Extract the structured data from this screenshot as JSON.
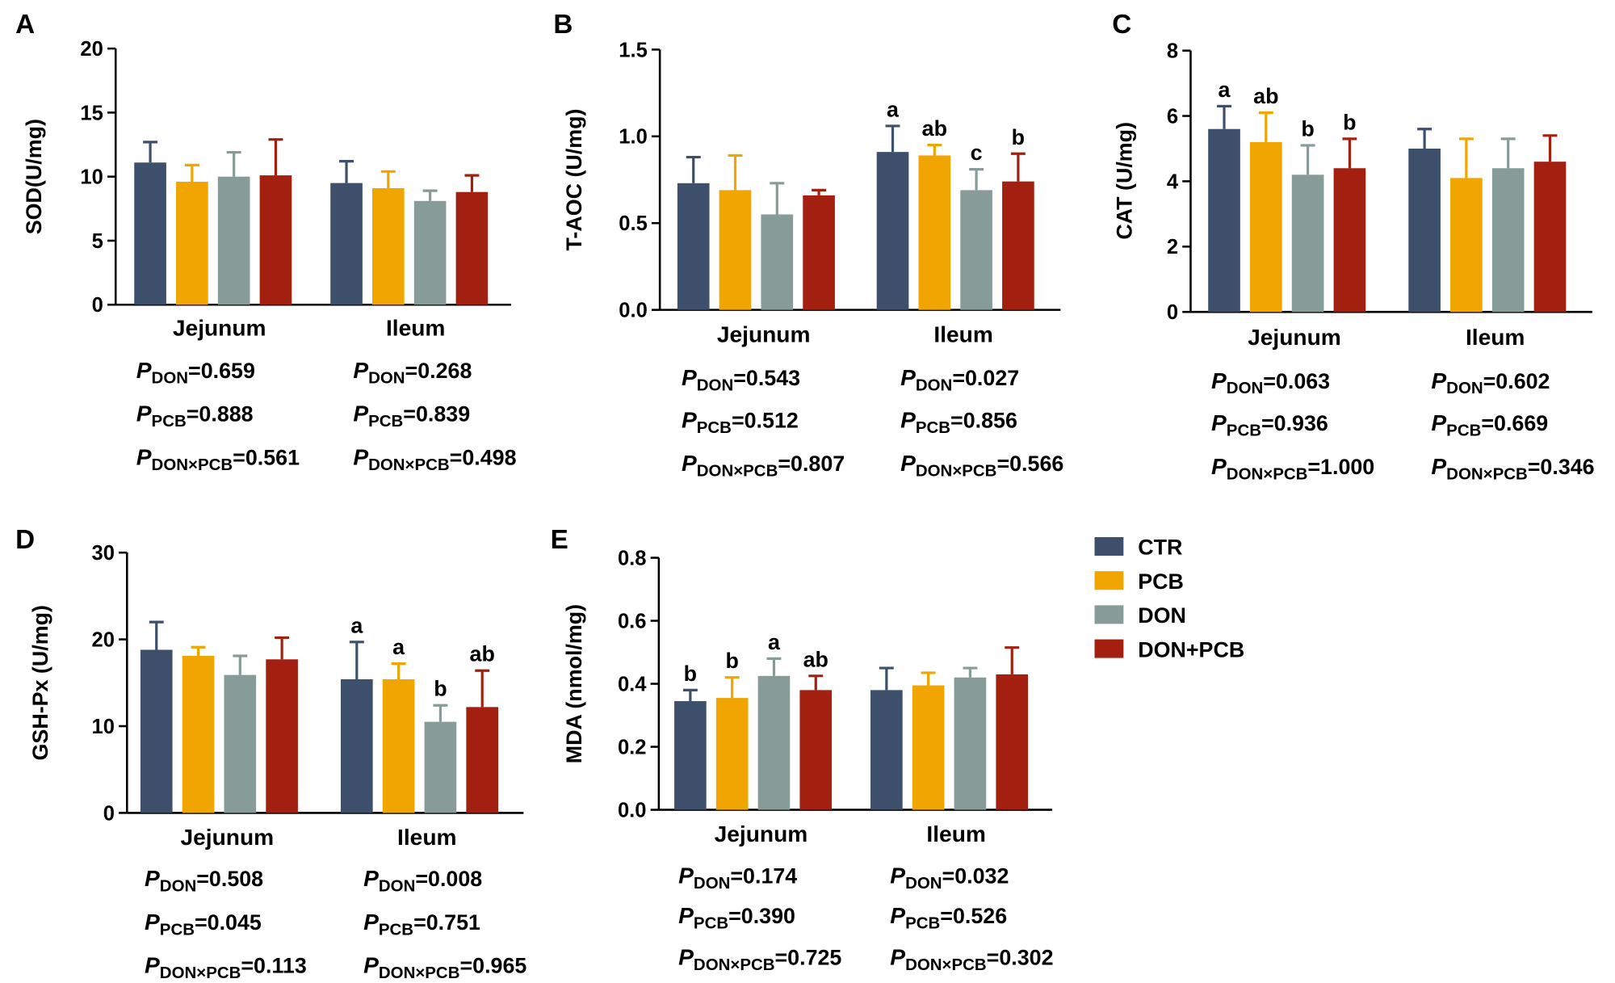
{
  "colors": {
    "CTR": "#3d4f6b",
    "PCB": "#f0a500",
    "DON": "#879c98",
    "DON+PCB": "#a32010",
    "axis": "#000000"
  },
  "legend": {
    "items": [
      {
        "label": "CTR",
        "color": "#3d4f6b"
      },
      {
        "label": "PCB",
        "color": "#f0a500"
      },
      {
        "label": "DON",
        "color": "#879c98"
      },
      {
        "label": "DON+PCB",
        "color": "#a32010"
      }
    ]
  },
  "chart_data": [
    {
      "panel": "A",
      "type": "bar",
      "ylabel": "SOD(U/mg)",
      "ylim": [
        0,
        20
      ],
      "yticks": [
        "0",
        "5",
        "10",
        "15",
        "20"
      ],
      "categories": [
        "Jejunum",
        "Ileum"
      ],
      "series": [
        {
          "name": "CTR",
          "values": [
            11.1,
            9.5
          ],
          "errors": [
            1.6,
            1.7
          ]
        },
        {
          "name": "PCB",
          "values": [
            9.6,
            9.1
          ],
          "errors": [
            1.3,
            1.3
          ]
        },
        {
          "name": "DON",
          "values": [
            10.0,
            8.1
          ],
          "errors": [
            1.9,
            0.8
          ]
        },
        {
          "name": "DON+PCB",
          "values": [
            10.1,
            8.8
          ],
          "errors": [
            2.8,
            1.3
          ]
        }
      ],
      "letters": [
        [
          "",
          "",
          "",
          ""
        ],
        [
          "",
          "",
          "",
          ""
        ]
      ],
      "pvalues": [
        {
          "don": "=0.659",
          "pcb": "=0.888",
          "int": "=0.561"
        },
        {
          "don": "=0.268",
          "pcb": "=0.839",
          "int": "=0.498"
        }
      ]
    },
    {
      "panel": "B",
      "type": "bar",
      "ylabel": "T-AOC (U/mg)",
      "ylim": [
        0,
        1.5
      ],
      "yticks": [
        "0.0",
        "0.5",
        "1.0",
        "1.5"
      ],
      "categories": [
        "Jejunum",
        "Ileum"
      ],
      "series": [
        {
          "name": "CTR",
          "values": [
            0.73,
            0.91
          ],
          "errors": [
            0.15,
            0.15
          ]
        },
        {
          "name": "PCB",
          "values": [
            0.69,
            0.89
          ],
          "errors": [
            0.2,
            0.06
          ]
        },
        {
          "name": "DON",
          "values": [
            0.55,
            0.69
          ],
          "errors": [
            0.18,
            0.12
          ]
        },
        {
          "name": "DON+PCB",
          "values": [
            0.66,
            0.74
          ],
          "errors": [
            0.03,
            0.16
          ]
        }
      ],
      "letters": [
        [
          "",
          "",
          "",
          ""
        ],
        [
          "a",
          "ab",
          "c",
          "b"
        ]
      ],
      "pvalues": [
        {
          "don": "=0.543",
          "pcb": "=0.512",
          "int": "=0.807"
        },
        {
          "don": "=0.027",
          "pcb": "=0.856",
          "int": "=0.566"
        }
      ]
    },
    {
      "panel": "C",
      "type": "bar",
      "ylabel": "CAT (U/mg)",
      "ylim": [
        0,
        8
      ],
      "yticks": [
        "0",
        "2",
        "4",
        "6",
        "8"
      ],
      "categories": [
        "Jejunum",
        "Ileum"
      ],
      "series": [
        {
          "name": "CTR",
          "values": [
            5.6,
            5.0
          ],
          "errors": [
            0.7,
            0.6
          ]
        },
        {
          "name": "PCB",
          "values": [
            5.2,
            4.1
          ],
          "errors": [
            0.9,
            1.2
          ]
        },
        {
          "name": "DON",
          "values": [
            4.2,
            4.4
          ],
          "errors": [
            0.9,
            0.9
          ]
        },
        {
          "name": "DON+PCB",
          "values": [
            4.4,
            4.6
          ],
          "errors": [
            0.9,
            0.8
          ]
        }
      ],
      "letters": [
        [
          "a",
          "ab",
          "b",
          "b"
        ],
        [
          "",
          "",
          "",
          ""
        ]
      ],
      "pvalues": [
        {
          "don": "=0.063",
          "pcb": "=0.936",
          "int": "=1.000"
        },
        {
          "don": "=0.602",
          "pcb": "=0.669",
          "int": "=0.346"
        }
      ]
    },
    {
      "panel": "D",
      "type": "bar",
      "ylabel": "GSH-Px (U/mg)",
      "ylim": [
        0,
        30
      ],
      "yticks": [
        "0",
        "10",
        "20",
        "30"
      ],
      "categories": [
        "Jejunum",
        "Ileum"
      ],
      "series": [
        {
          "name": "CTR",
          "values": [
            18.8,
            15.4
          ],
          "errors": [
            3.2,
            4.3
          ]
        },
        {
          "name": "PCB",
          "values": [
            18.1,
            15.4
          ],
          "errors": [
            1.0,
            1.8
          ]
        },
        {
          "name": "DON",
          "values": [
            15.9,
            10.5
          ],
          "errors": [
            2.2,
            1.9
          ]
        },
        {
          "name": "DON+PCB",
          "values": [
            17.7,
            12.2
          ],
          "errors": [
            2.5,
            4.2
          ]
        }
      ],
      "letters": [
        [
          "",
          "",
          "",
          ""
        ],
        [
          "a",
          "a",
          "b",
          "ab"
        ]
      ],
      "pvalues": [
        {
          "don": "=0.508",
          "pcb": "=0.045",
          "int": "=0.113"
        },
        {
          "don": "=0.008",
          "pcb": "=0.751",
          "int": "=0.965"
        }
      ]
    },
    {
      "panel": "E",
      "type": "bar",
      "ylabel": "MDA (nmol/mg)",
      "ylim": [
        0,
        0.8
      ],
      "yticks": [
        "0.0",
        "0.2",
        "0.4",
        "0.6",
        "0.8"
      ],
      "categories": [
        "Jejunum",
        "Ileum"
      ],
      "series": [
        {
          "name": "CTR",
          "values": [
            0.345,
            0.38
          ],
          "errors": [
            0.035,
            0.07
          ]
        },
        {
          "name": "PCB",
          "values": [
            0.355,
            0.395
          ],
          "errors": [
            0.065,
            0.04
          ]
        },
        {
          "name": "DON",
          "values": [
            0.425,
            0.42
          ],
          "errors": [
            0.055,
            0.03
          ]
        },
        {
          "name": "DON+PCB",
          "values": [
            0.38,
            0.43
          ],
          "errors": [
            0.045,
            0.085
          ]
        }
      ],
      "letters": [
        [
          "b",
          "b",
          "a",
          "ab"
        ],
        [
          "",
          "",
          "",
          ""
        ]
      ],
      "pvalues": [
        {
          "don": "=0.174",
          "pcb": "=0.390",
          "int": "=0.725"
        },
        {
          "don": "=0.032",
          "pcb": "=0.526",
          "int": "=0.302"
        }
      ]
    }
  ],
  "labels": {
    "p": "P",
    "don_sub": "DON",
    "pcb_sub": "PCB",
    "int_sub": "DON×PCB"
  }
}
